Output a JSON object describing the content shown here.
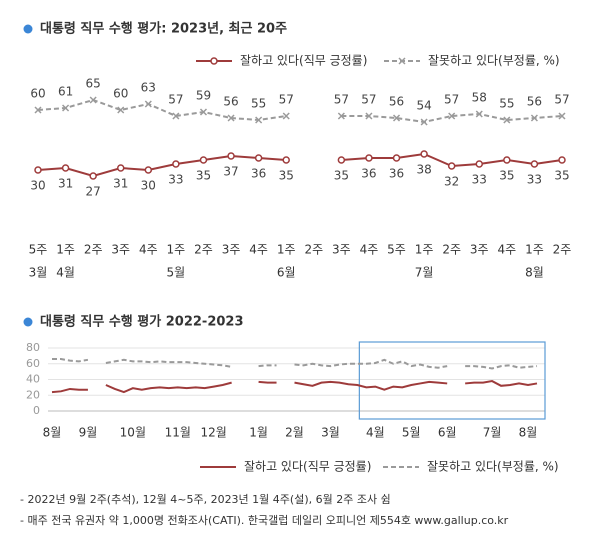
{
  "chart_data": [
    {
      "type": "line",
      "title": "대통령 직무 수행 평가: 2023년, 최근 20주",
      "categories": [
        "5주",
        "1주",
        "2주",
        "3주",
        "4주",
        "1주",
        "2주",
        "3주",
        "4주",
        "1주",
        "2주",
        "3주",
        "4주",
        "5주",
        "1주",
        "2주",
        "3주",
        "4주",
        "1주",
        "2주"
      ],
      "category_groups": [
        "3월",
        "4월",
        null,
        null,
        null,
        "5월",
        null,
        null,
        null,
        "6월",
        null,
        null,
        null,
        null,
        "7월",
        null,
        null,
        null,
        "8월",
        null
      ],
      "series": [
        {
          "name": "잘하고 있다(직무 긍정률)",
          "color": "#9e3b3b",
          "line_style": "solid",
          "marker": "circle",
          "values": [
            30,
            31,
            27,
            31,
            30,
            33,
            35,
            37,
            36,
            35,
            null,
            35,
            36,
            36,
            38,
            32,
            33,
            35,
            33,
            35
          ]
        },
        {
          "name": "잘못하고 있다(부정률, %)",
          "color": "#9a9a9a",
          "line_style": "dashed",
          "marker": "x",
          "values": [
            60,
            61,
            65,
            60,
            63,
            57,
            59,
            56,
            55,
            57,
            null,
            57,
            57,
            56,
            54,
            57,
            58,
            55,
            56,
            57
          ]
        }
      ],
      "ylim": [
        0,
        80
      ],
      "value_labels_shown": true
    },
    {
      "type": "line",
      "title": "대통령 직무 수행 평가 2022-2023",
      "categories": [
        "8월",
        null,
        null,
        null,
        "9월",
        null,
        null,
        null,
        null,
        "10월",
        null,
        null,
        null,
        null,
        "11월",
        null,
        null,
        null,
        "12월",
        null,
        null,
        null,
        null,
        "1월",
        null,
        null,
        null,
        "2월",
        null,
        null,
        null,
        "3월",
        null,
        null,
        null,
        null,
        "4월",
        null,
        null,
        null,
        "5월",
        null,
        null,
        null,
        "6월",
        null,
        null,
        null,
        null,
        "7월",
        null,
        null,
        null,
        "8월",
        null
      ],
      "series": [
        {
          "name": "잘하고 있다(직무 긍정률)",
          "color": "#9e3b3b",
          "line_style": "solid",
          "values": [
            24,
            25,
            28,
            27,
            27,
            null,
            33,
            28,
            24,
            29,
            27,
            29,
            30,
            29,
            30,
            29,
            30,
            29,
            31,
            33,
            36,
            null,
            null,
            37,
            36,
            36,
            null,
            36,
            34,
            32,
            36,
            37,
            36,
            34,
            33,
            30,
            31,
            27,
            31,
            30,
            33,
            35,
            37,
            36,
            35,
            null,
            35,
            36,
            36,
            38,
            32,
            33,
            35,
            33,
            35
          ]
        },
        {
          "name": "잘못하고 있다(부정률, %)",
          "color": "#9a9a9a",
          "line_style": "dashed",
          "values": [
            66,
            66,
            64,
            63,
            65,
            null,
            61,
            63,
            65,
            63,
            63,
            62,
            63,
            62,
            62,
            62,
            61,
            60,
            59,
            58,
            56,
            null,
            null,
            57,
            58,
            58,
            null,
            59,
            58,
            60,
            58,
            57,
            59,
            60,
            60,
            60,
            61,
            65,
            60,
            63,
            57,
            59,
            56,
            55,
            57,
            null,
            57,
            57,
            56,
            54,
            57,
            58,
            55,
            56,
            57
          ]
        }
      ],
      "ylim": [
        0,
        80
      ],
      "yticks": [
        0,
        20,
        40,
        60,
        80
      ],
      "grid": true
    }
  ],
  "notes": [
    "- 2022년 9월 2주(추석), 12월 4~5주, 2023년 1월 4주(설), 6월 2주 조사 쉼",
    "- 매주 전국 유권자 약 1,000명 전화조사(CATI). 한국갤럽 데일리 오피니언 제554호 www.gallup.co.kr"
  ]
}
